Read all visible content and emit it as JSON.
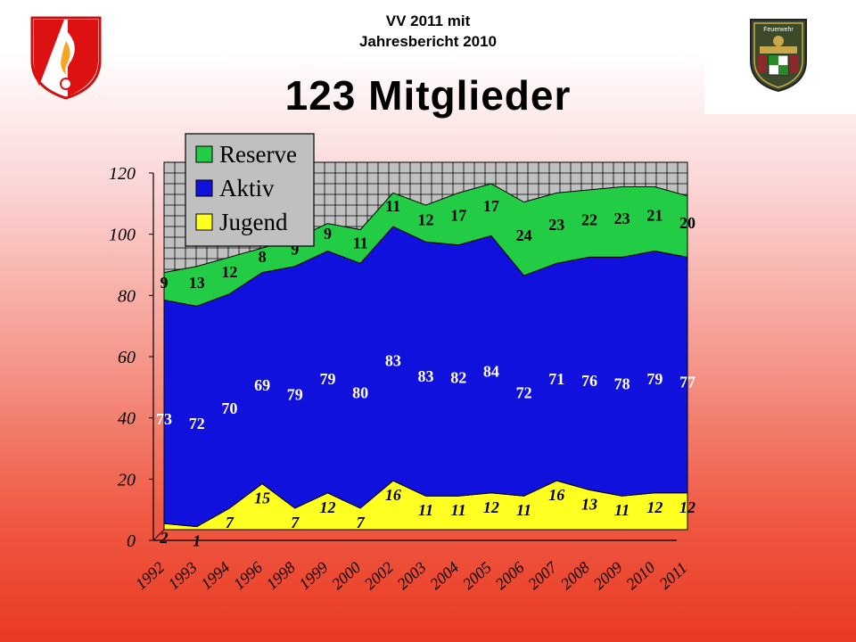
{
  "header": {
    "line1": "VV 2011 mit",
    "line2": "Jahresbericht 2010",
    "title": "123 Mitglieder"
  },
  "logos": {
    "left": "oebfv-flame-shield-logo",
    "right": "feuerwehr-coat-of-arms-logo",
    "right_text": "Feuerwehr"
  },
  "colors": {
    "reserve": "#22cc44",
    "aktiv": "#1111dd",
    "jugend": "#ffff22",
    "plot_bg": "#c0c0c0"
  },
  "chart_data": {
    "type": "area",
    "stacked": true,
    "title": "",
    "xlabel": "",
    "ylabel": "",
    "ylim": [
      0,
      120
    ],
    "yticks": [
      0,
      20,
      40,
      60,
      80,
      100,
      120
    ],
    "grid": true,
    "legend_placement": "top-left",
    "categories": [
      "1992",
      "1993",
      "1994",
      "1996",
      "1998",
      "1999",
      "2000",
      "2002",
      "2003",
      "2004",
      "2005",
      "2006",
      "2007",
      "2008",
      "2009",
      "2010",
      "2011"
    ],
    "series": [
      {
        "name": "Jugend",
        "values": [
          2,
          1,
          7,
          15,
          7,
          12,
          7,
          16,
          11,
          11,
          12,
          11,
          16,
          13,
          11,
          12,
          12
        ]
      },
      {
        "name": "Aktiv",
        "values": [
          73,
          72,
          70,
          69,
          79,
          79,
          80,
          83,
          83,
          82,
          84,
          72,
          71,
          76,
          78,
          79,
          77
        ]
      },
      {
        "name": "Reserve",
        "values": [
          9,
          13,
          12,
          8,
          9,
          9,
          11,
          11,
          12,
          17,
          17,
          24,
          23,
          22,
          23,
          21,
          20
        ]
      }
    ]
  }
}
